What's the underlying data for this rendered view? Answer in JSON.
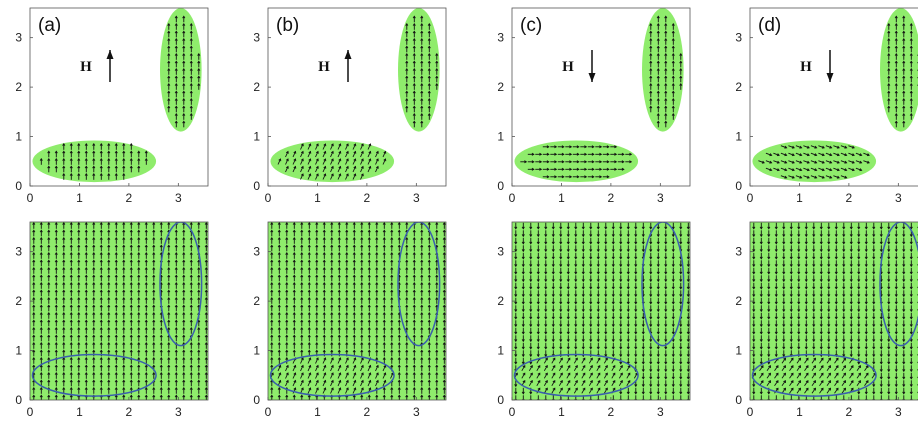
{
  "colors": {
    "particle_fill": "#8fec6c",
    "background_field_fill": "#8fec6c",
    "ellipse_outline": "#3a5fad",
    "arrow": "#111111",
    "frame": "#555555"
  },
  "field_symbol": "H",
  "chart_data": [
    {
      "type": "vector-field",
      "row": "top",
      "panel_label": "(a)",
      "field_direction": "up",
      "field_symbol": "H",
      "xlim": [
        0,
        3.6
      ],
      "ylim": [
        0,
        3.6
      ],
      "xticks": [
        "0",
        "1",
        "2",
        "3"
      ],
      "yticks": [
        "0",
        "1",
        "2",
        "3"
      ],
      "grid": false,
      "arrow_angles_deg": {
        "horizontal_particle": 90,
        "vertical_particle": 90
      },
      "ellipses": [
        {
          "cx": 1.3,
          "cy": 0.5,
          "rx": 1.25,
          "ry": 0.42
        },
        {
          "cx": 3.05,
          "cy": 2.35,
          "rx": 0.42,
          "ry": 1.25
        }
      ]
    },
    {
      "type": "vector-field",
      "row": "top",
      "panel_label": "(b)",
      "field_direction": "up",
      "field_symbol": "H",
      "xlim": [
        0,
        3.6
      ],
      "ylim": [
        0,
        3.6
      ],
      "xticks": [
        "0",
        "1",
        "2",
        "3"
      ],
      "yticks": [
        "0",
        "1",
        "2",
        "3"
      ],
      "grid": false,
      "arrow_angles_deg": {
        "horizontal_particle": 65,
        "vertical_particle": 90
      },
      "ellipses": [
        {
          "cx": 1.3,
          "cy": 0.5,
          "rx": 1.25,
          "ry": 0.42
        },
        {
          "cx": 3.05,
          "cy": 2.35,
          "rx": 0.42,
          "ry": 1.25
        }
      ]
    },
    {
      "type": "vector-field",
      "row": "top",
      "panel_label": "(c)",
      "field_direction": "down",
      "field_symbol": "H",
      "xlim": [
        0,
        3.6
      ],
      "ylim": [
        0,
        3.6
      ],
      "xticks": [
        "0",
        "1",
        "2",
        "3"
      ],
      "yticks": [
        "0",
        "1",
        "2",
        "3"
      ],
      "grid": false,
      "arrow_angles_deg": {
        "horizontal_particle": 0,
        "vertical_particle": 90
      },
      "ellipses": [
        {
          "cx": 1.3,
          "cy": 0.5,
          "rx": 1.25,
          "ry": 0.42
        },
        {
          "cx": 3.05,
          "cy": 2.35,
          "rx": 0.42,
          "ry": 1.25
        }
      ]
    },
    {
      "type": "vector-field",
      "row": "top",
      "panel_label": "(d)",
      "field_direction": "down",
      "field_symbol": "H",
      "xlim": [
        0,
        3.6
      ],
      "ylim": [
        0,
        3.6
      ],
      "xticks": [
        "0",
        "1",
        "2",
        "3"
      ],
      "yticks": [
        "0",
        "1",
        "2",
        "3"
      ],
      "grid": false,
      "arrow_angles_deg": {
        "horizontal_particle": -20,
        "vertical_particle": 90
      },
      "ellipses": [
        {
          "cx": 1.3,
          "cy": 0.5,
          "rx": 1.25,
          "ry": 0.42
        },
        {
          "cx": 3.05,
          "cy": 2.35,
          "rx": 0.42,
          "ry": 1.25
        }
      ]
    },
    {
      "type": "vector-field",
      "row": "bottom",
      "panel_label": "",
      "field_direction": "up",
      "xlim": [
        0,
        3.6
      ],
      "ylim": [
        0,
        3.6
      ],
      "xticks": [
        "0",
        "1",
        "2",
        "3"
      ],
      "yticks": [
        "0",
        "1",
        "2",
        "3"
      ],
      "grid": false,
      "background_angle_deg": 90,
      "ellipses": [
        {
          "cx": 1.3,
          "cy": 0.5,
          "rx": 1.25,
          "ry": 0.42
        },
        {
          "cx": 3.05,
          "cy": 2.35,
          "rx": 0.42,
          "ry": 1.25
        }
      ]
    },
    {
      "type": "vector-field",
      "row": "bottom",
      "panel_label": "",
      "field_direction": "up",
      "xlim": [
        0,
        3.6
      ],
      "ylim": [
        0,
        3.6
      ],
      "xticks": [
        "0",
        "1",
        "2",
        "3"
      ],
      "yticks": [
        "0",
        "1",
        "2",
        "3"
      ],
      "grid": false,
      "background_angle_deg": 90,
      "horizontal_particle_angle_deg": 65,
      "ellipses": [
        {
          "cx": 1.3,
          "cy": 0.5,
          "rx": 1.25,
          "ry": 0.42
        },
        {
          "cx": 3.05,
          "cy": 2.35,
          "rx": 0.42,
          "ry": 1.25
        }
      ]
    },
    {
      "type": "vector-field",
      "row": "bottom",
      "panel_label": "",
      "field_direction": "down",
      "xlim": [
        0,
        3.6
      ],
      "ylim": [
        0,
        3.6
      ],
      "xticks": [
        "0",
        "1",
        "2",
        "3"
      ],
      "yticks": [
        "0",
        "1",
        "2",
        "3"
      ],
      "grid": false,
      "background_angle_deg": -90,
      "horizontal_particle_angle_deg": 60,
      "ellipses": [
        {
          "cx": 1.3,
          "cy": 0.5,
          "rx": 1.25,
          "ry": 0.42
        },
        {
          "cx": 3.05,
          "cy": 2.35,
          "rx": 0.42,
          "ry": 1.25
        }
      ]
    },
    {
      "type": "vector-field",
      "row": "bottom",
      "panel_label": "",
      "field_direction": "down",
      "xlim": [
        0,
        3.6
      ],
      "ylim": [
        0,
        3.6
      ],
      "xticks": [
        "0",
        "1",
        "2",
        "3"
      ],
      "yticks": [
        "0",
        "1",
        "2",
        "3"
      ],
      "grid": false,
      "background_angle_deg": -90,
      "horizontal_particle_angle_deg": 55,
      "ellipses": [
        {
          "cx": 1.3,
          "cy": 0.5,
          "rx": 1.25,
          "ry": 0.42
        },
        {
          "cx": 3.05,
          "cy": 2.35,
          "rx": 0.42,
          "ry": 1.25
        }
      ]
    }
  ]
}
